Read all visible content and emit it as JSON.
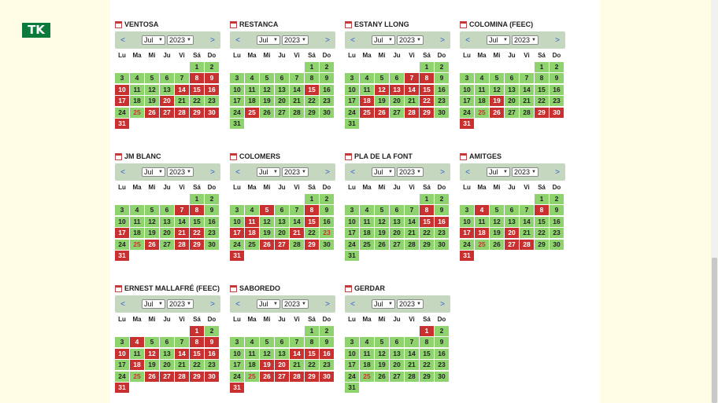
{
  "logo": {
    "text": "TK",
    "mark_color": "#0b7a3b"
  },
  "colors": {
    "available": "#8fd36f",
    "full": "#c93131",
    "nav_bar": "#c6d7c0"
  },
  "weekday_headers": [
    "Lu",
    "Ma",
    "Mi",
    "Ju",
    "Vi",
    "Sá",
    "Do"
  ],
  "calendars": [
    {
      "name": "VENTOSA",
      "month": "Jul",
      "year": "2023",
      "full": [
        8,
        9,
        10,
        14,
        15,
        16,
        17,
        20,
        26,
        27,
        28,
        29,
        30,
        31
      ],
      "red_text": [
        25
      ]
    },
    {
      "name": "RESTANCA",
      "month": "Jul",
      "year": "2023",
      "full": [
        15,
        25
      ],
      "red_text": []
    },
    {
      "name": "ESTANY LLONG",
      "month": "Jul",
      "year": "2023",
      "full": [
        7,
        8,
        12,
        13,
        14,
        15,
        18,
        22,
        25,
        26,
        28,
        29
      ],
      "red_text": []
    },
    {
      "name": "COLOMINA (FEEC)",
      "month": "Jul",
      "year": "2023",
      "full": [
        19,
        26,
        29,
        30,
        31
      ],
      "red_text": [
        25
      ]
    },
    {
      "name": "JM BLANC",
      "month": "Jul",
      "year": "2023",
      "full": [
        7,
        8,
        17,
        21,
        22,
        26,
        28,
        29,
        31
      ],
      "red_text": [
        25
      ]
    },
    {
      "name": "COLOMERS",
      "month": "Jul",
      "year": "2023",
      "full": [
        5,
        8,
        11,
        15,
        17,
        18,
        21,
        26,
        27,
        29,
        31
      ],
      "red_text": [
        23
      ]
    },
    {
      "name": "PLA DE LA FONT",
      "month": "Jul",
      "year": "2023",
      "full": [
        8,
        15,
        16
      ],
      "red_text": []
    },
    {
      "name": "AMITGES",
      "month": "Jul",
      "year": "2023",
      "full": [
        4,
        8,
        17,
        18,
        20,
        27,
        28,
        31
      ],
      "red_text": [
        25
      ]
    },
    {
      "name": "ERNEST MALLAFRÉ (FEEC)",
      "month": "Jul",
      "year": "2023",
      "full": [
        1,
        4,
        8,
        9,
        10,
        12,
        14,
        15,
        16,
        18,
        26,
        27,
        28,
        29,
        30,
        31
      ],
      "red_text": [
        25
      ]
    },
    {
      "name": "SABOREDO",
      "month": "Jul",
      "year": "2023",
      "full": [
        14,
        15,
        16,
        19,
        20,
        26,
        27,
        28,
        29,
        30,
        31
      ],
      "red_text": [
        25
      ]
    },
    {
      "name": "GERDAR",
      "month": "Jul",
      "year": "2023",
      "full": [
        1
      ],
      "red_text": [
        25
      ]
    }
  ]
}
